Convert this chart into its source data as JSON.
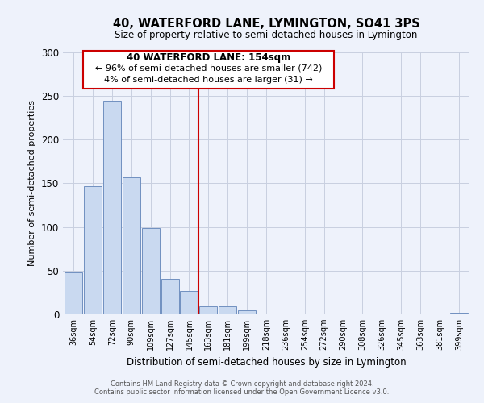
{
  "title": "40, WATERFORD LANE, LYMINGTON, SO41 3PS",
  "subtitle": "Size of property relative to semi-detached houses in Lymington",
  "xlabel": "Distribution of semi-detached houses by size in Lymington",
  "ylabel": "Number of semi-detached properties",
  "bar_labels": [
    "36sqm",
    "54sqm",
    "72sqm",
    "90sqm",
    "109sqm",
    "127sqm",
    "145sqm",
    "163sqm",
    "181sqm",
    "199sqm",
    "218sqm",
    "236sqm",
    "254sqm",
    "272sqm",
    "290sqm",
    "308sqm",
    "326sqm",
    "345sqm",
    "363sqm",
    "381sqm",
    "399sqm"
  ],
  "bar_values": [
    48,
    147,
    245,
    157,
    99,
    41,
    27,
    9,
    9,
    5,
    0,
    0,
    0,
    0,
    0,
    0,
    0,
    0,
    0,
    0,
    2
  ],
  "bar_color": "#c9d9f0",
  "bar_edge_color": "#7090c0",
  "vline_color": "#cc0000",
  "annotation_title": "40 WATERFORD LANE: 154sqm",
  "annotation_line1": "← 96% of semi-detached houses are smaller (742)",
  "annotation_line2": "4% of semi-detached houses are larger (31) →",
  "annotation_box_color": "#ffffff",
  "annotation_box_edge": "#cc0000",
  "ylim": [
    0,
    300
  ],
  "yticks": [
    0,
    50,
    100,
    150,
    200,
    250,
    300
  ],
  "footer1": "Contains HM Land Registry data © Crown copyright and database right 2024.",
  "footer2": "Contains public sector information licensed under the Open Government Licence v3.0.",
  "bg_color": "#eef2fb",
  "plot_bg_color": "#eef2fb",
  "grid_color": "#c8cfe0"
}
